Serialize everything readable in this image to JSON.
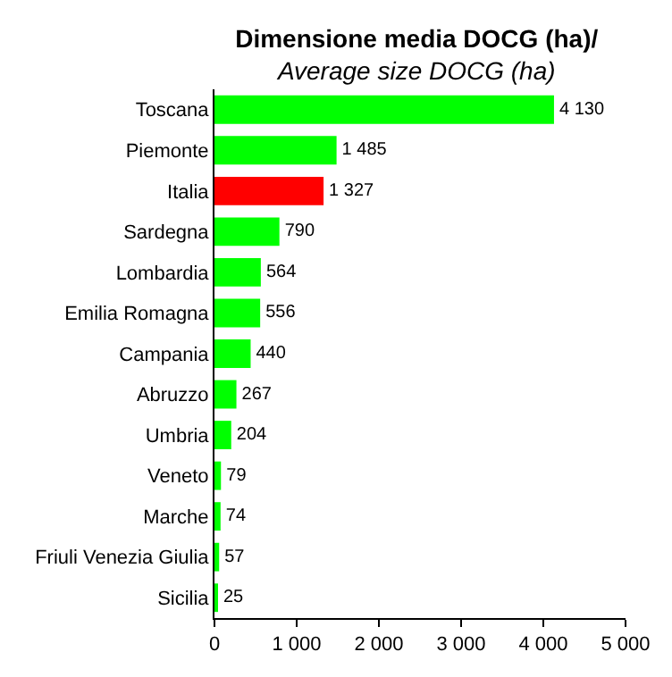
{
  "chart_data": {
    "type": "bar",
    "orientation": "horizontal",
    "title": "Dimensione media DOCG (ha)/",
    "subtitle": "Average size DOCG (ha)",
    "categories": [
      "Toscana",
      "Piemonte",
      "Italia",
      "Sardegna",
      "Lombardia",
      "Emilia Romagna",
      "Campania",
      "Abruzzo",
      "Umbria",
      "Veneto",
      "Marche",
      "Friuli Venezia Giulia",
      "Sicilia"
    ],
    "values": [
      4130,
      1485,
      1327,
      790,
      564,
      556,
      440,
      267,
      204,
      79,
      74,
      57,
      25
    ],
    "colors": [
      "#00ff00",
      "#00ff00",
      "#ff0000",
      "#00ff00",
      "#00ff00",
      "#00ff00",
      "#00ff00",
      "#00ff00",
      "#00ff00",
      "#00ff00",
      "#00ff00",
      "#00ff00",
      "#00ff00"
    ],
    "value_labels": [
      "4 130",
      "1 485",
      "1 327",
      "790",
      "564",
      "556",
      "440",
      "267",
      "204",
      "79",
      "74",
      "57",
      "25"
    ],
    "xlim": [
      0,
      5000
    ],
    "xticks": [
      0,
      {
        "value": 1000,
        "label": "1 000"
      },
      {
        "value": 2000,
        "label": "2 000"
      },
      {
        "value": 3000,
        "label": "3 000"
      },
      {
        "value": 4000,
        "label": "4 000"
      },
      {
        "value": 5000,
        "label": "5 000"
      }
    ],
    "legend": false
  }
}
